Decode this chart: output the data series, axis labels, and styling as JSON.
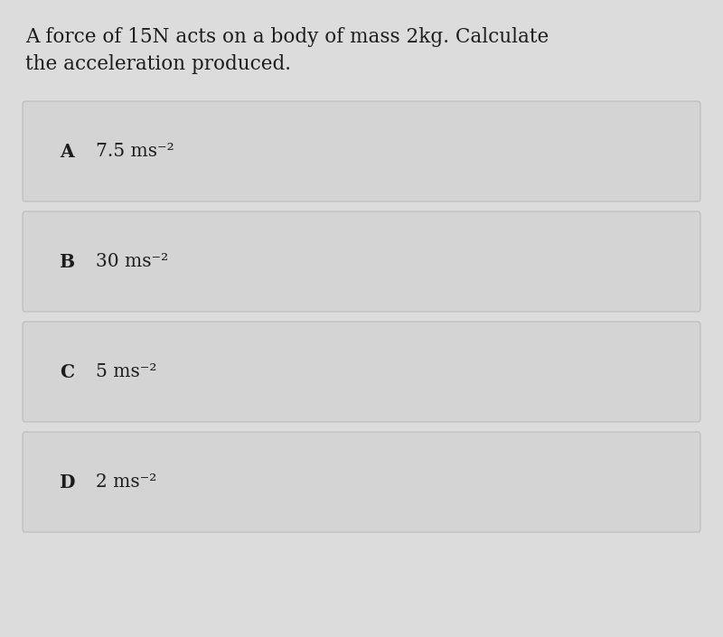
{
  "question_line1": "A force of 15N acts on a body of mass 2kg. Calculate",
  "question_line2": "the acceleration produced.",
  "options": [
    {
      "label": "A",
      "value": "7.5 ms⁻²"
    },
    {
      "label": "B",
      "value": "30 ms⁻²"
    },
    {
      "label": "C",
      "value": "5 ms⁻²"
    },
    {
      "label": "D",
      "value": "2 ms⁻²"
    }
  ],
  "bg_color": "#dcdcdc",
  "box_color": "#d4d4d4",
  "box_edge_color": "#b8b8b8",
  "text_color": "#1c1c1c",
  "question_fontsize": 15.5,
  "option_label_fontsize": 14.5,
  "option_text_fontsize": 14.5,
  "fig_width": 8.0,
  "fig_height": 7.05
}
